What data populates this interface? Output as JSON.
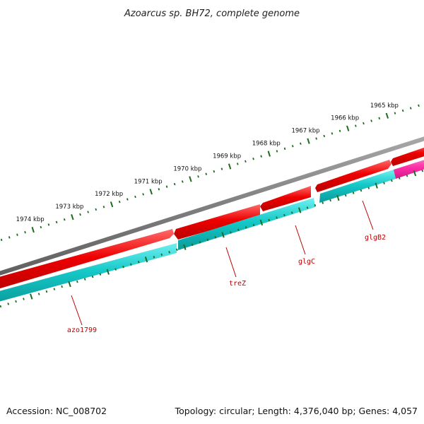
{
  "title": "Azoarcus sp. BH72, complete genome",
  "footer": {
    "accession": "Accession: NC_008702",
    "summary": "Topology: circular; Length: 4,376,040 bp; Genes: 4,057"
  },
  "colors": {
    "backbone": "#7f7f7f",
    "forward_gene": "#e00000",
    "reverse_gene": "#16c8c8",
    "highlight_gene": "#ff2fa8",
    "ticks": "#1d6b1d",
    "gene_label": "#c00000"
  },
  "ticks": [
    {
      "label": "1974 kbp"
    },
    {
      "label": "1973 kbp"
    },
    {
      "label": "1972 kbp"
    },
    {
      "label": "1971 kbp"
    },
    {
      "label": "1970 kbp"
    },
    {
      "label": "1969 kbp"
    },
    {
      "label": "1968 kbp"
    },
    {
      "label": "1967 kbp"
    },
    {
      "label": "1966 kbp"
    },
    {
      "label": "1965 kbp"
    }
  ],
  "genes": [
    {
      "name": "azo1799"
    },
    {
      "name": "treZ"
    },
    {
      "name": "glgC"
    },
    {
      "name": "glgB2"
    }
  ]
}
